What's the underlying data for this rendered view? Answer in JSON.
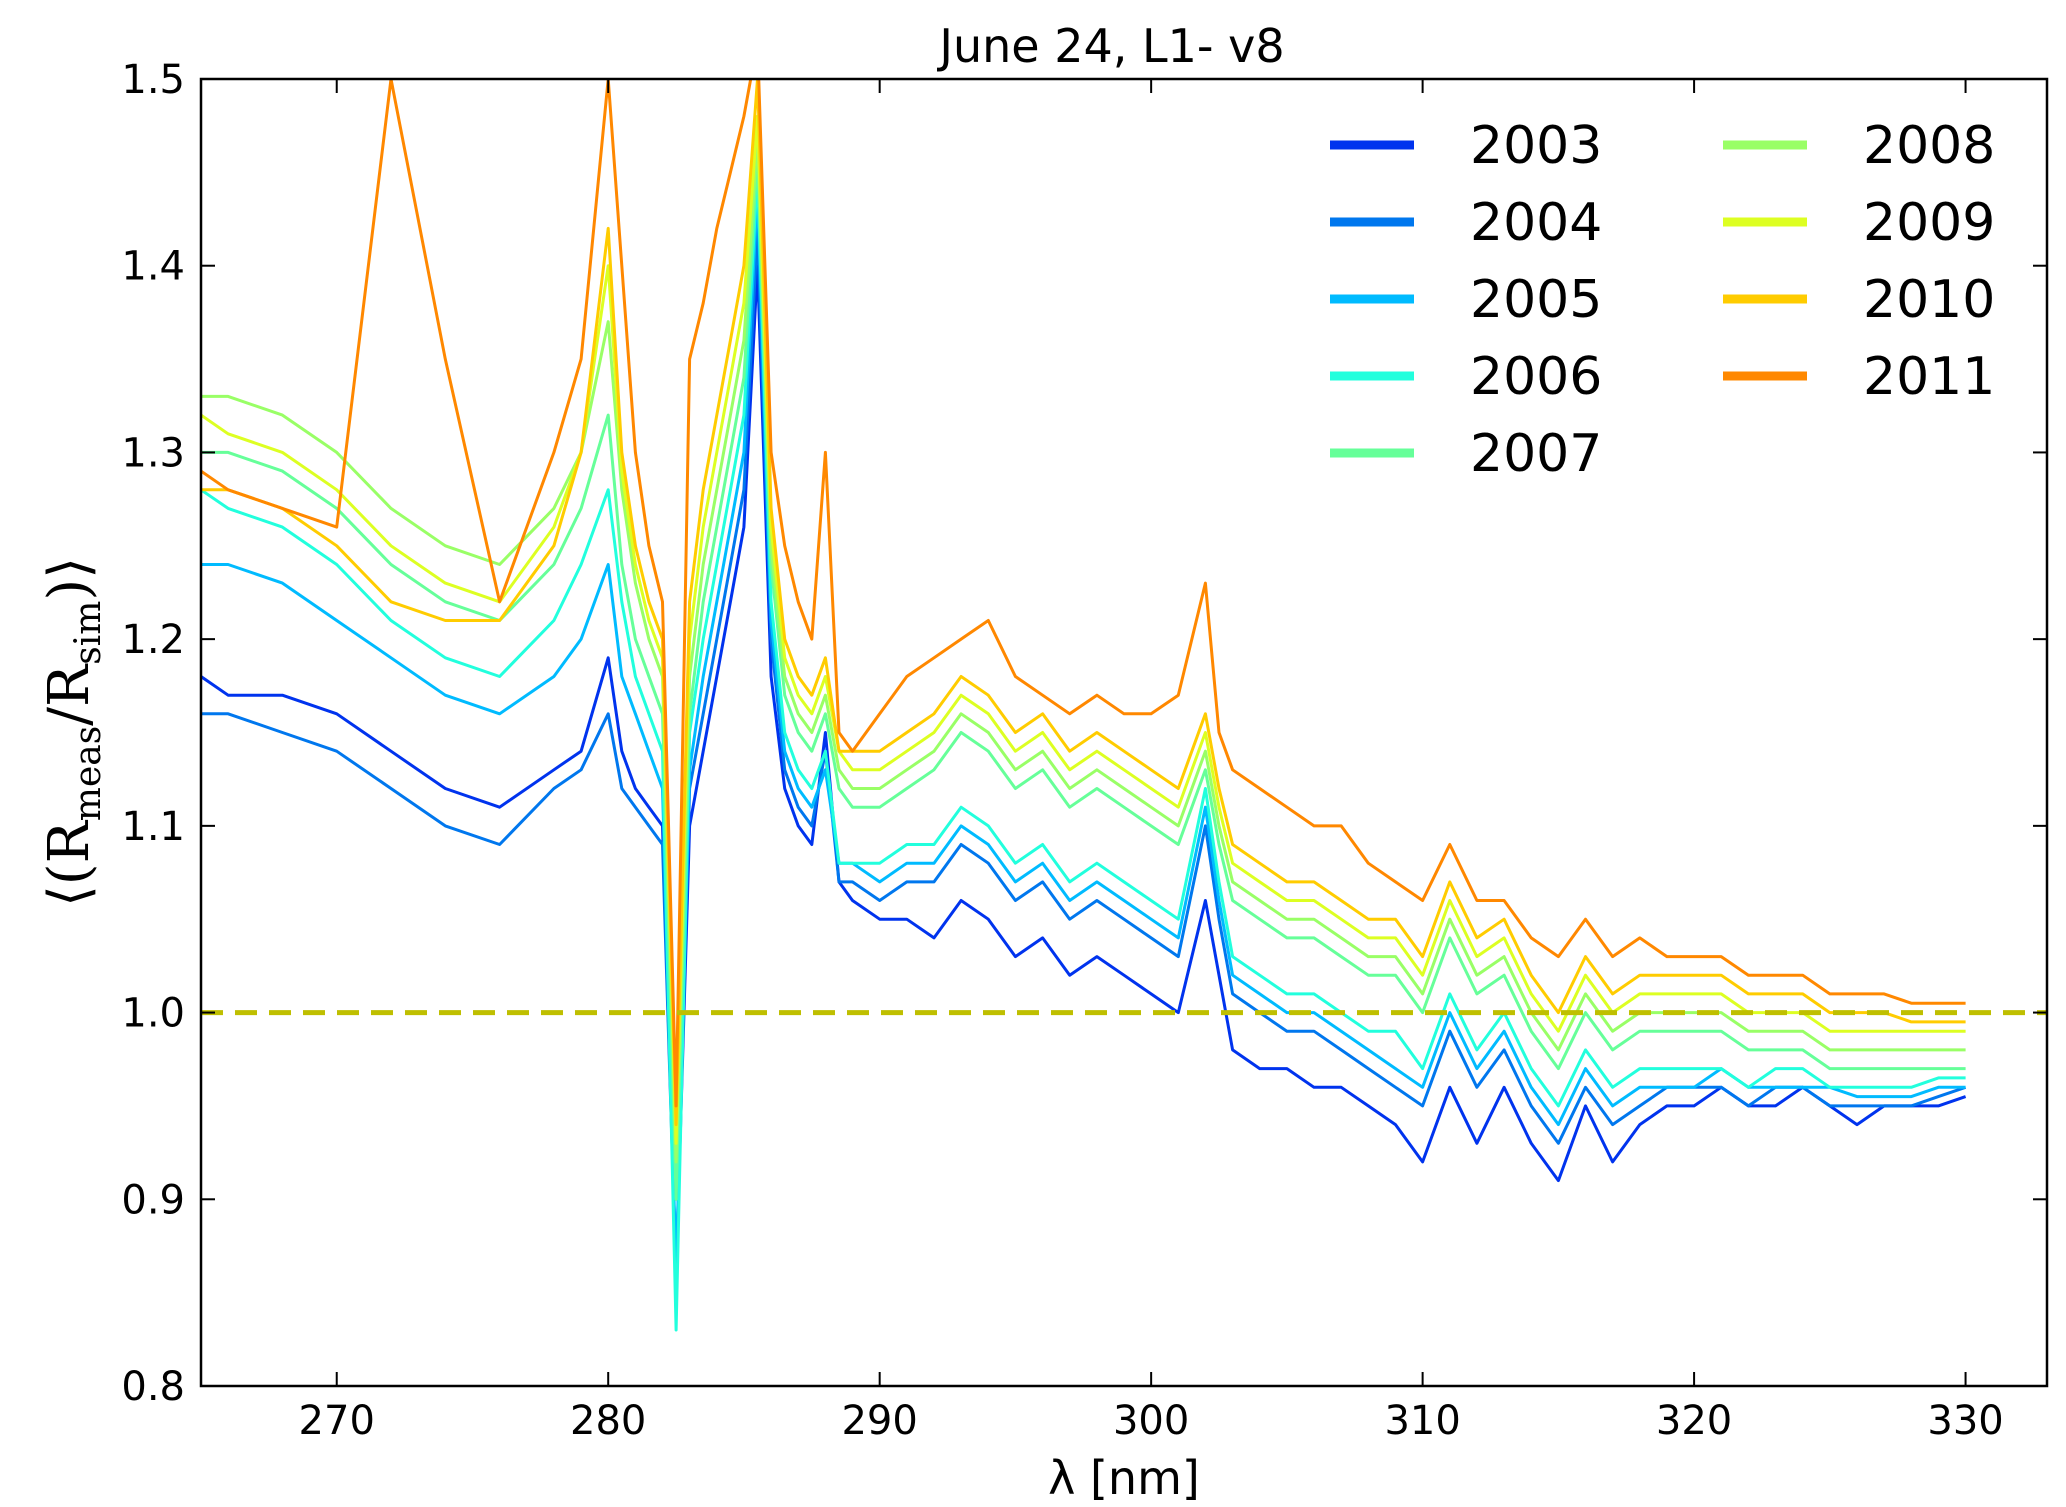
{
  "chart_data": {
    "type": "line",
    "title": "June 24, L1- v8",
    "xlabel": "λ [nm]",
    "ylabel": {
      "open": "⟨(R",
      "sub1": "meas",
      "mid": "/R",
      "sub2": "sim",
      "close": ")⟩"
    },
    "xlim": [
      265,
      333
    ],
    "ylim": [
      0.8,
      1.5
    ],
    "xticks": [
      270,
      280,
      290,
      300,
      310,
      320,
      330
    ],
    "yticks": [
      0.8,
      0.9,
      1.0,
      1.1,
      1.2,
      1.3,
      1.4,
      1.5
    ],
    "xtick_labels": [
      "270",
      "280",
      "290",
      "300",
      "310",
      "320",
      "330"
    ],
    "ytick_labels": [
      "0.8",
      "0.9",
      "1.0",
      "1.1",
      "1.2",
      "1.3",
      "1.4",
      "1.5"
    ],
    "grid": false,
    "legend_position": "top-right",
    "legend_columns": 2,
    "reference_line": {
      "y": 1.0,
      "style": "dashed",
      "color": "#bfbf00"
    },
    "x": [
      265,
      266,
      268,
      270,
      272,
      274,
      276,
      278,
      279,
      280,
      280.5,
      281,
      281.5,
      282,
      282.5,
      283,
      283.5,
      284,
      284.5,
      285,
      285.5,
      286,
      286.5,
      287,
      287.5,
      288,
      288.5,
      289,
      290,
      291,
      292,
      293,
      294,
      295,
      296,
      297,
      298,
      299,
      300,
      301,
      302,
      302.5,
      303,
      304,
      305,
      306,
      307,
      308,
      309,
      310,
      311,
      312,
      313,
      314,
      315,
      316,
      317,
      318,
      319,
      320,
      321,
      322,
      323,
      324,
      325,
      326,
      327,
      328,
      329,
      330
    ],
    "series": [
      {
        "name": "2003",
        "color": "#0033ee",
        "values": [
          1.18,
          1.17,
          1.17,
          1.16,
          1.14,
          1.12,
          1.11,
          1.13,
          1.14,
          1.19,
          1.14,
          1.12,
          1.11,
          1.1,
          0.86,
          1.1,
          1.14,
          1.18,
          1.22,
          1.26,
          1.4,
          1.18,
          1.12,
          1.1,
          1.09,
          1.15,
          1.07,
          1.06,
          1.05,
          1.05,
          1.04,
          1.06,
          1.05,
          1.03,
          1.04,
          1.02,
          1.03,
          1.02,
          1.01,
          1.0,
          1.06,
          1.02,
          0.98,
          0.97,
          0.97,
          0.96,
          0.96,
          0.95,
          0.94,
          0.92,
          0.96,
          0.93,
          0.96,
          0.93,
          0.91,
          0.95,
          0.92,
          0.94,
          0.95,
          0.95,
          0.96,
          0.95,
          0.95,
          0.96,
          0.95,
          0.94,
          0.95,
          0.95,
          0.95,
          0.955
        ]
      },
      {
        "name": "2004",
        "color": "#0077ee",
        "values": [
          1.16,
          1.16,
          1.15,
          1.14,
          1.12,
          1.1,
          1.09,
          1.12,
          1.13,
          1.16,
          1.12,
          1.11,
          1.1,
          1.09,
          0.86,
          1.12,
          1.16,
          1.2,
          1.24,
          1.28,
          1.42,
          1.2,
          1.13,
          1.11,
          1.1,
          1.14,
          1.07,
          1.07,
          1.06,
          1.07,
          1.07,
          1.09,
          1.08,
          1.06,
          1.07,
          1.05,
          1.06,
          1.05,
          1.04,
          1.03,
          1.1,
          1.05,
          1.01,
          1.0,
          0.99,
          0.99,
          0.98,
          0.97,
          0.96,
          0.95,
          0.99,
          0.96,
          0.98,
          0.95,
          0.93,
          0.96,
          0.94,
          0.95,
          0.96,
          0.96,
          0.96,
          0.95,
          0.96,
          0.96,
          0.95,
          0.95,
          0.95,
          0.95,
          0.955,
          0.96
        ]
      },
      {
        "name": "2005",
        "color": "#00bbff",
        "values": [
          1.24,
          1.24,
          1.23,
          1.21,
          1.19,
          1.17,
          1.16,
          1.18,
          1.2,
          1.24,
          1.18,
          1.16,
          1.14,
          1.12,
          0.86,
          1.13,
          1.18,
          1.22,
          1.26,
          1.3,
          1.44,
          1.21,
          1.14,
          1.12,
          1.11,
          1.13,
          1.08,
          1.08,
          1.07,
          1.08,
          1.08,
          1.1,
          1.09,
          1.07,
          1.08,
          1.06,
          1.07,
          1.06,
          1.05,
          1.04,
          1.11,
          1.06,
          1.02,
          1.01,
          1.0,
          1.0,
          0.99,
          0.98,
          0.97,
          0.96,
          1.0,
          0.97,
          0.99,
          0.96,
          0.94,
          0.97,
          0.95,
          0.96,
          0.96,
          0.96,
          0.97,
          0.96,
          0.96,
          0.96,
          0.96,
          0.955,
          0.955,
          0.955,
          0.96,
          0.96
        ]
      },
      {
        "name": "2006",
        "color": "#22ffdd",
        "values": [
          1.28,
          1.27,
          1.26,
          1.24,
          1.21,
          1.19,
          1.18,
          1.21,
          1.24,
          1.28,
          1.22,
          1.18,
          1.16,
          1.14,
          0.83,
          1.15,
          1.2,
          1.24,
          1.28,
          1.32,
          1.45,
          1.22,
          1.15,
          1.13,
          1.12,
          1.14,
          1.08,
          1.08,
          1.08,
          1.09,
          1.09,
          1.11,
          1.1,
          1.08,
          1.09,
          1.07,
          1.08,
          1.07,
          1.06,
          1.05,
          1.12,
          1.07,
          1.03,
          1.02,
          1.01,
          1.01,
          1.0,
          0.99,
          0.99,
          0.97,
          1.01,
          0.98,
          1.0,
          0.97,
          0.95,
          0.98,
          0.96,
          0.97,
          0.97,
          0.97,
          0.97,
          0.96,
          0.97,
          0.97,
          0.96,
          0.96,
          0.96,
          0.96,
          0.965,
          0.965
        ]
      },
      {
        "name": "2007",
        "color": "#66ff99",
        "values": [
          1.3,
          1.3,
          1.29,
          1.27,
          1.24,
          1.22,
          1.21,
          1.24,
          1.27,
          1.32,
          1.24,
          1.2,
          1.18,
          1.16,
          0.9,
          1.16,
          1.22,
          1.26,
          1.3,
          1.34,
          1.46,
          1.24,
          1.17,
          1.15,
          1.14,
          1.16,
          1.12,
          1.11,
          1.11,
          1.12,
          1.13,
          1.15,
          1.14,
          1.12,
          1.13,
          1.11,
          1.12,
          1.11,
          1.1,
          1.09,
          1.13,
          1.09,
          1.06,
          1.05,
          1.04,
          1.04,
          1.03,
          1.02,
          1.02,
          1.0,
          1.04,
          1.01,
          1.02,
          0.99,
          0.97,
          1.0,
          0.98,
          0.99,
          0.99,
          0.99,
          0.99,
          0.98,
          0.98,
          0.98,
          0.97,
          0.97,
          0.97,
          0.97,
          0.97,
          0.97
        ]
      },
      {
        "name": "2008",
        "color": "#99ff66",
        "values": [
          1.33,
          1.33,
          1.32,
          1.3,
          1.27,
          1.25,
          1.24,
          1.27,
          1.3,
          1.37,
          1.28,
          1.23,
          1.2,
          1.18,
          0.92,
          1.18,
          1.24,
          1.28,
          1.32,
          1.36,
          1.47,
          1.25,
          1.18,
          1.16,
          1.15,
          1.17,
          1.13,
          1.12,
          1.12,
          1.13,
          1.14,
          1.16,
          1.15,
          1.13,
          1.14,
          1.12,
          1.13,
          1.12,
          1.11,
          1.1,
          1.14,
          1.1,
          1.07,
          1.06,
          1.05,
          1.05,
          1.04,
          1.03,
          1.03,
          1.01,
          1.05,
          1.02,
          1.03,
          1.0,
          0.98,
          1.01,
          0.99,
          1.0,
          1.0,
          1.0,
          1.0,
          0.99,
          0.99,
          0.99,
          0.98,
          0.98,
          0.98,
          0.98,
          0.98,
          0.98
        ]
      },
      {
        "name": "2009",
        "color": "#ddff22",
        "values": [
          1.32,
          1.31,
          1.3,
          1.28,
          1.25,
          1.23,
          1.22,
          1.26,
          1.3,
          1.4,
          1.29,
          1.24,
          1.21,
          1.19,
          0.93,
          1.2,
          1.26,
          1.3,
          1.34,
          1.38,
          1.48,
          1.26,
          1.19,
          1.17,
          1.16,
          1.18,
          1.14,
          1.13,
          1.13,
          1.14,
          1.15,
          1.17,
          1.16,
          1.14,
          1.15,
          1.13,
          1.14,
          1.13,
          1.12,
          1.11,
          1.15,
          1.11,
          1.08,
          1.07,
          1.06,
          1.06,
          1.05,
          1.04,
          1.04,
          1.02,
          1.06,
          1.03,
          1.04,
          1.01,
          0.99,
          1.02,
          1.0,
          1.01,
          1.01,
          1.01,
          1.01,
          1.0,
          1.0,
          1.0,
          0.99,
          0.99,
          0.99,
          0.99,
          0.99,
          0.99
        ]
      },
      {
        "name": "2010",
        "color": "#ffcc00",
        "values": [
          1.28,
          1.28,
          1.27,
          1.25,
          1.22,
          1.21,
          1.21,
          1.25,
          1.3,
          1.42,
          1.3,
          1.25,
          1.22,
          1.2,
          0.94,
          1.22,
          1.28,
          1.32,
          1.36,
          1.4,
          1.5,
          1.27,
          1.2,
          1.18,
          1.17,
          1.19,
          1.14,
          1.14,
          1.14,
          1.15,
          1.16,
          1.18,
          1.17,
          1.15,
          1.16,
          1.14,
          1.15,
          1.14,
          1.13,
          1.12,
          1.16,
          1.12,
          1.09,
          1.08,
          1.07,
          1.07,
          1.06,
          1.05,
          1.05,
          1.03,
          1.07,
          1.04,
          1.05,
          1.02,
          1.0,
          1.03,
          1.01,
          1.02,
          1.02,
          1.02,
          1.02,
          1.01,
          1.01,
          1.01,
          1.0,
          1.0,
          1.0,
          0.995,
          0.995,
          0.995
        ]
      },
      {
        "name": "2011",
        "color": "#ff8800",
        "values": [
          1.29,
          1.28,
          1.27,
          1.26,
          1.5,
          1.35,
          1.22,
          1.3,
          1.35,
          1.5,
          1.4,
          1.3,
          1.25,
          1.22,
          0.95,
          1.35,
          1.38,
          1.42,
          1.45,
          1.48,
          1.52,
          1.3,
          1.25,
          1.22,
          1.2,
          1.3,
          1.15,
          1.14,
          1.16,
          1.18,
          1.19,
          1.2,
          1.21,
          1.18,
          1.17,
          1.16,
          1.17,
          1.16,
          1.16,
          1.17,
          1.23,
          1.15,
          1.13,
          1.12,
          1.11,
          1.1,
          1.1,
          1.08,
          1.07,
          1.06,
          1.09,
          1.06,
          1.06,
          1.04,
          1.03,
          1.05,
          1.03,
          1.04,
          1.03,
          1.03,
          1.03,
          1.02,
          1.02,
          1.02,
          1.01,
          1.01,
          1.01,
          1.005,
          1.005,
          1.005
        ]
      }
    ]
  }
}
